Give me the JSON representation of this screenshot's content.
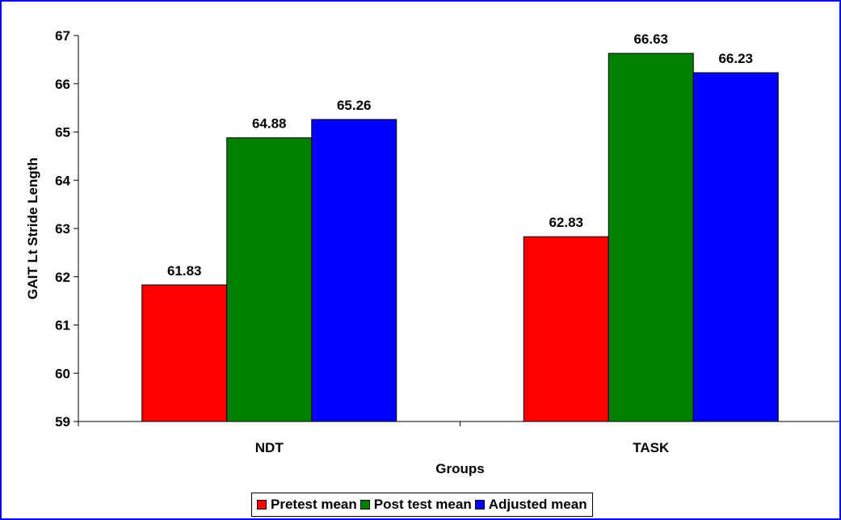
{
  "chart_data": {
    "type": "bar",
    "categories": [
      "NDT",
      "TASK"
    ],
    "series": [
      {
        "name": "Pretest mean",
        "color": "#ff0000",
        "values": [
          61.83,
          62.83
        ]
      },
      {
        "name": "Post test mean",
        "color": "#008000",
        "values": [
          64.88,
          66.63
        ]
      },
      {
        "name": "Adjusted mean",
        "color": "#0000ff",
        "values": [
          65.26,
          66.23
        ]
      }
    ],
    "xlabel": "Groups",
    "ylabel": "GAIT Lt Stride Length",
    "ylim": [
      59,
      67
    ],
    "yticks": [
      "59",
      "60",
      "61",
      "62",
      "63",
      "64",
      "65",
      "66",
      "67"
    ],
    "data_labels": [
      [
        "61.83",
        "62.83"
      ],
      [
        "64.88",
        "66.63"
      ],
      [
        "65.26",
        "66.23"
      ]
    ],
    "grid": false,
    "legend_position": "bottom",
    "frame_color": "#0000ff"
  }
}
